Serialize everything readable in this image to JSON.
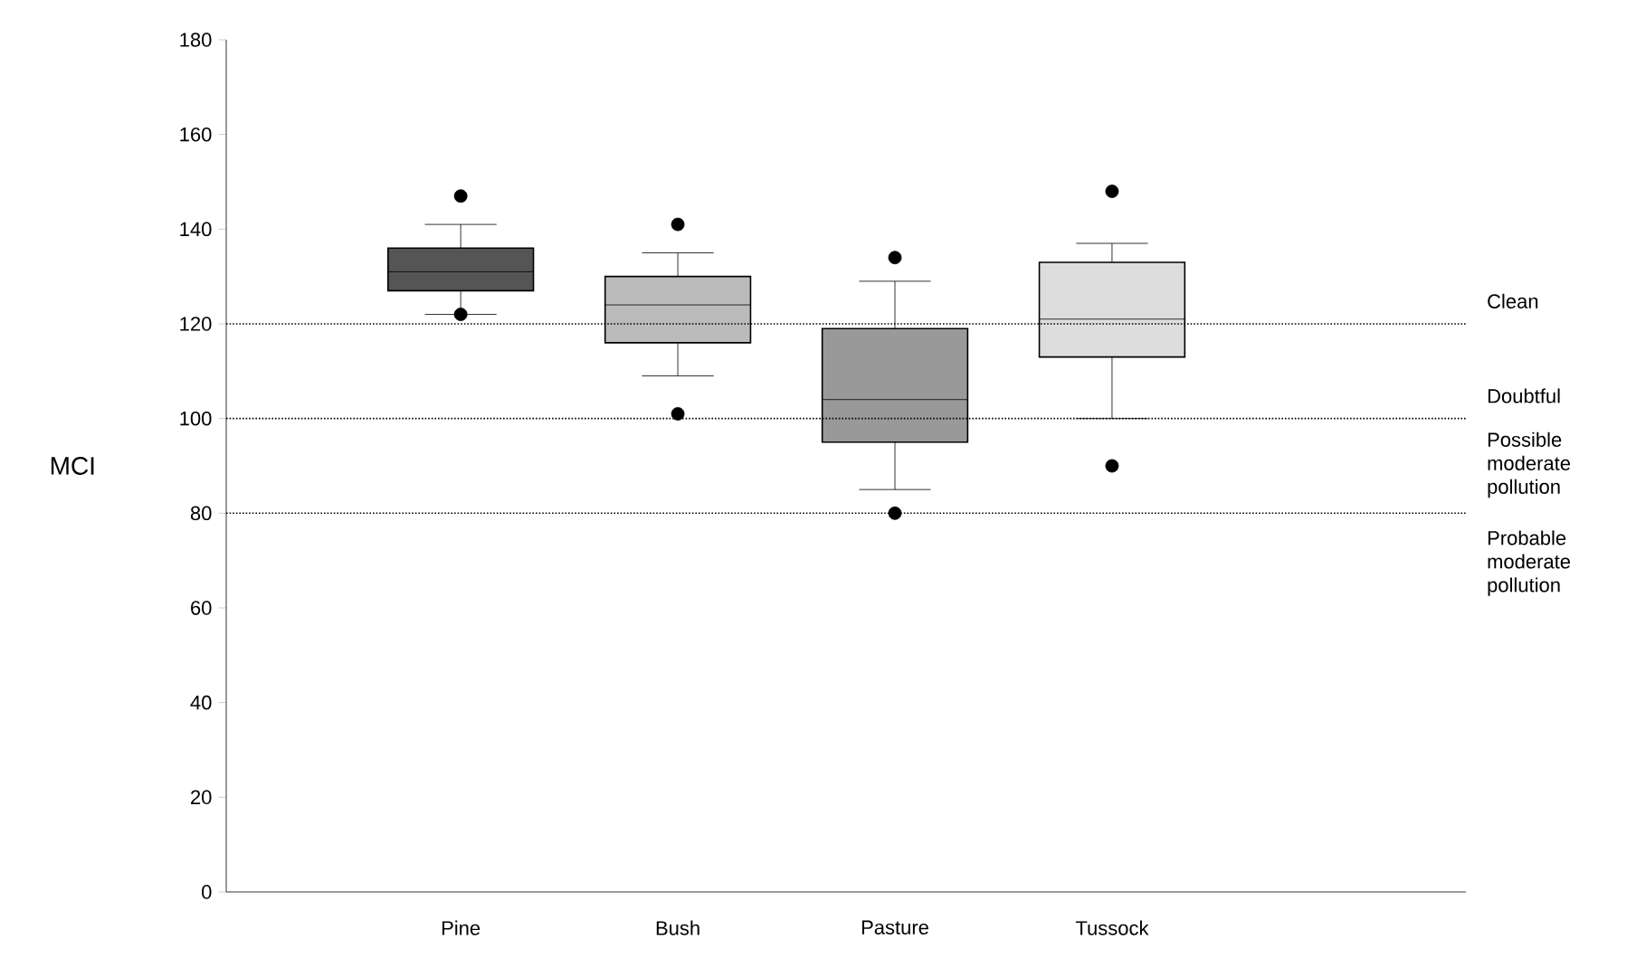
{
  "chart_data": {
    "type": "box",
    "ylabel": "MCI",
    "categories": [
      "Pine",
      "Bush",
      "Pasture",
      "Tussock"
    ],
    "colors": [
      "#555555",
      "#bbbbbb",
      "#999999",
      "#dddddd"
    ],
    "boxes": [
      {
        "low": 122,
        "q1": 127,
        "median": 131,
        "q3": 136,
        "high": 141,
        "outliers": [
          147,
          122
        ]
      },
      {
        "low": 109,
        "q1": 116,
        "median": 124,
        "q3": 130,
        "high": 135,
        "outliers": [
          141,
          101
        ]
      },
      {
        "low": 85,
        "q1": 95,
        "median": 104,
        "q3": 119,
        "high": 129,
        "outliers": [
          134,
          80
        ]
      },
      {
        "low": 100,
        "q1": 113,
        "median": 121,
        "q3": 133,
        "high": 137,
        "outliers": [
          148,
          90
        ]
      }
    ],
    "ylim": [
      0,
      180
    ],
    "yticks": [
      0,
      20,
      40,
      60,
      80,
      100,
      120,
      140,
      160,
      180
    ],
    "ref_lines": [
      {
        "axis": "y",
        "value": 120,
        "label": "Clean",
        "line_style": "dotted"
      },
      {
        "axis": "y",
        "value": 100,
        "label": "Doubtful",
        "line_style": "dotted"
      },
      {
        "axis": "y",
        "value": 80,
        "label": "Possible moderate pollution",
        "line_style": "dotted"
      }
    ],
    "annotations": [
      "Probable moderate pollution"
    ],
    "grid": false
  }
}
